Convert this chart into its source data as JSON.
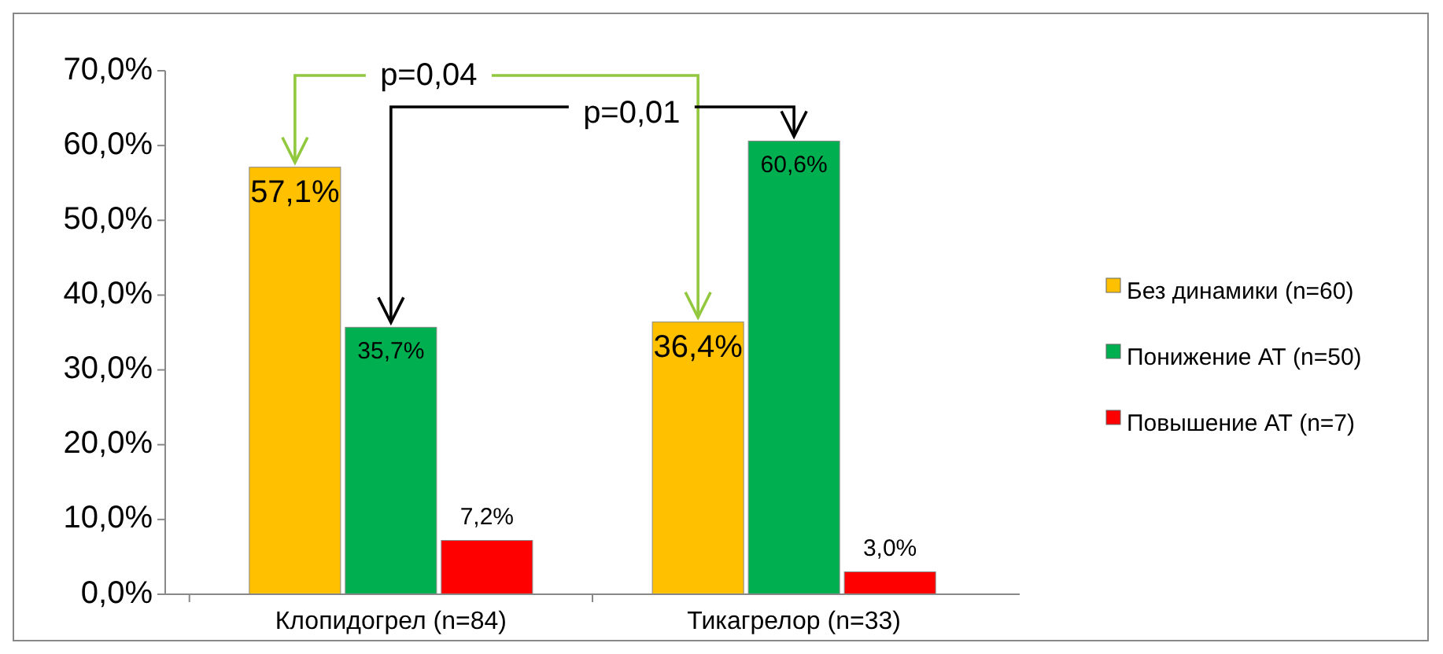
{
  "chart_data": {
    "type": "bar",
    "categories": [
      "Клопидогрел (n=84)",
      "Тикагрелор (n=33)"
    ],
    "series": [
      {
        "name": "Без динамики (n=60)",
        "color": "#ffc000",
        "values": [
          57.1,
          36.4
        ],
        "value_labels": [
          "57,1%",
          "36,4%"
        ]
      },
      {
        "name": "Понижение АТ (n=50)",
        "color": "#00b050",
        "values": [
          35.7,
          60.6
        ],
        "value_labels": [
          "35,7%",
          "60,6%"
        ]
      },
      {
        "name": "Повышение АТ (n=7)",
        "color": "#ff0000",
        "values": [
          7.2,
          3.0
        ],
        "value_labels": [
          "7,2%",
          "3,0%"
        ]
      }
    ],
    "ylim": [
      0,
      70
    ],
    "yticks": [
      {
        "value": 0,
        "label": "0,0%"
      },
      {
        "value": 10,
        "label": "10,0%"
      },
      {
        "value": 20,
        "label": "20,0%"
      },
      {
        "value": 30,
        "label": "30,0%"
      },
      {
        "value": 40,
        "label": "40,0%"
      },
      {
        "value": 50,
        "label": "50,0%"
      },
      {
        "value": 60,
        "label": "60,0%"
      },
      {
        "value": 70,
        "label": "70,0%"
      }
    ],
    "annotations": [
      "p=0,04",
      "p=0,01"
    ],
    "legend": "right",
    "grid": false
  }
}
